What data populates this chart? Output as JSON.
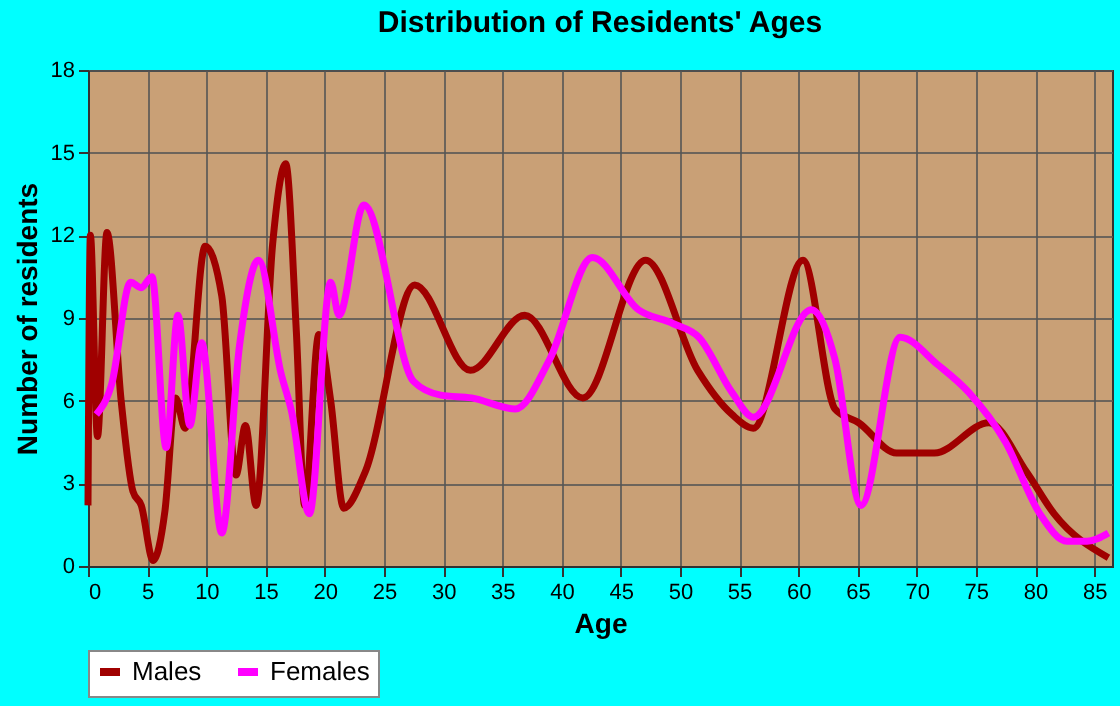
{
  "chart_data": {
    "type": "line",
    "title": "Distribution of Residents' Ages",
    "xlabel": "Age",
    "ylabel": "Number of residents",
    "xlim": [
      0,
      86.5
    ],
    "xticks": [
      0,
      5,
      10,
      15,
      20,
      25,
      30,
      35,
      40,
      45,
      50,
      55,
      60,
      65,
      70,
      75,
      80,
      85
    ],
    "ylim": [
      0,
      18
    ],
    "yticks": [
      0,
      3,
      6,
      9,
      12,
      15,
      18
    ],
    "grid": true,
    "legend": "bottom",
    "line_style": "solid",
    "series": [
      {
        "name": "Males",
        "color": "#a00000",
        "x": [
          0,
          0.2,
          0.8,
          1.6,
          2.8,
          3.8,
          4.5,
          5.5,
          6.5,
          7.4,
          8.2,
          9.9,
          11.3,
          12.5,
          13.3,
          14.2,
          15.6,
          16.7,
          17.6,
          18.3,
          19.5,
          20.5,
          21.6,
          23.4,
          27.6,
          32.3,
          36.9,
          41.8,
          47.1,
          51.5,
          54.4,
          56.2,
          60.4,
          63.1,
          65.1,
          68.3,
          71.5,
          76.1,
          79.3,
          81.6,
          86.2
        ],
        "values": [
          2.2,
          12,
          4.7,
          12.1,
          6,
          2.7,
          2.2,
          0.2,
          2,
          6.1,
          5,
          11.6,
          9.8,
          3.3,
          5.1,
          2.2,
          11.7,
          14.6,
          8.5,
          2.2,
          8.4,
          6,
          2.1,
          3.4,
          10.2,
          7.1,
          9.1,
          6.1,
          11.1,
          7.1,
          5.5,
          5,
          11.1,
          5.7,
          5.2,
          4.1,
          4.1,
          5.2,
          3.4,
          1.9,
          0.3
        ]
      },
      {
        "name": "Females",
        "color": "#ff00ff",
        "x": [
          0.7,
          2,
          3.6,
          4.5,
          5.4,
          6.6,
          7.6,
          8.6,
          9.6,
          11.3,
          12.8,
          14.4,
          16.3,
          17.2,
          18.7,
          20.5,
          21.2,
          23.3,
          27.5,
          29.8,
          32.4,
          36.1,
          39,
          42.6,
          46.5,
          49.4,
          51.6,
          54.4,
          56.2,
          61.1,
          63.1,
          65.3,
          68.6,
          71.8,
          74.4,
          77.5,
          80.4,
          82.7,
          84.4,
          86.2
        ],
        "values": [
          5.5,
          6.6,
          10.3,
          10.1,
          10.5,
          4.3,
          9.1,
          5.1,
          8.1,
          1.2,
          8,
          11.1,
          7,
          5.6,
          1.9,
          10.3,
          9.1,
          13.1,
          6.7,
          6.2,
          6.1,
          5.7,
          7.5,
          11.2,
          9.3,
          8.8,
          8.3,
          6.3,
          5.4,
          9.3,
          7.5,
          2.2,
          8.3,
          7.3,
          6.3,
          4.5,
          1.9,
          0.9,
          0.9,
          1.2
        ]
      }
    ]
  }
}
